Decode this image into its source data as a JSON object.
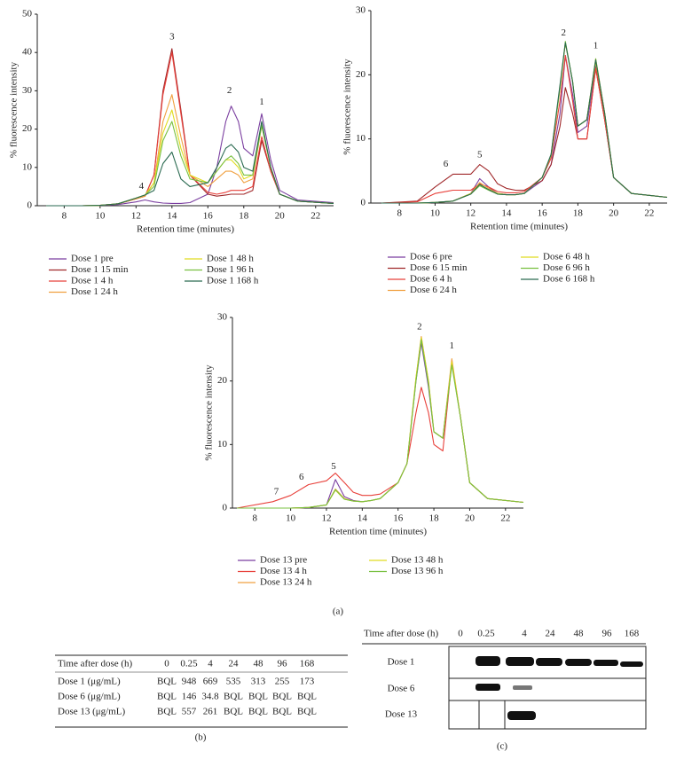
{
  "chart_data": [
    {
      "type": "line",
      "xlabel": "Retention time (minutes)",
      "ylabel": "% fluorescence intensity",
      "x": [
        7,
        9,
        10,
        11,
        12,
        12.5,
        13,
        13.5,
        14,
        14.5,
        15,
        16,
        16.5,
        17,
        17.3,
        17.7,
        18,
        18.5,
        19,
        19.5,
        20,
        21,
        23
      ],
      "xlim": [
        6.5,
        23
      ],
      "xticks": [
        8,
        10,
        12,
        14,
        16,
        18,
        20,
        22
      ],
      "ylim": [
        0,
        50
      ],
      "yticks": [
        0,
        10,
        20,
        30,
        40,
        50
      ],
      "series": [
        {
          "name": "Dose 1 pre",
          "color": "#7b3fa0",
          "values": [
            0,
            0,
            0.1,
            0.3,
            1,
            1.5,
            1,
            0.7,
            0.6,
            0.6,
            0.8,
            3,
            10,
            22,
            26,
            22,
            15,
            13,
            24,
            12,
            4,
            1.5,
            0.8
          ]
        },
        {
          "name": "Dose 1 15 min",
          "color": "#a0282a",
          "values": [
            0,
            0,
            0.1,
            0.5,
            1.8,
            2.5,
            8,
            30,
            41,
            25,
            8,
            3,
            2.5,
            2.8,
            3,
            3,
            3,
            4,
            17,
            9,
            3,
            1.2,
            0.6
          ]
        },
        {
          "name": "Dose 1 4 h",
          "color": "#e8403a",
          "values": [
            0,
            0,
            0.1,
            0.5,
            1.8,
            2.5,
            8,
            29,
            40,
            24,
            8,
            3.5,
            3,
            3.5,
            4,
            4,
            4,
            5,
            18,
            9,
            3,
            1.2,
            0.6
          ]
        },
        {
          "name": "Dose 1 24 h",
          "color": "#f0a040",
          "values": [
            0,
            0,
            0.1,
            0.5,
            1.8,
            2.5,
            6,
            22,
            29,
            18,
            8,
            5,
            7,
            9,
            9,
            8,
            6,
            7,
            21,
            10,
            3,
            1.2,
            0.6
          ]
        },
        {
          "name": "Dose 1 48 h",
          "color": "#e0dc20",
          "values": [
            0,
            0,
            0.1,
            0.5,
            2,
            2.8,
            6,
            19,
            25,
            15,
            8,
            6,
            9,
            12,
            12,
            10,
            7,
            8,
            21,
            10,
            3,
            1.2,
            0.6
          ]
        },
        {
          "name": "Dose 1 96 h",
          "color": "#78c040",
          "values": [
            0,
            0,
            0.1,
            0.5,
            2,
            2.8,
            5,
            17,
            22,
            13,
            7,
            6,
            9,
            12,
            13,
            11,
            8,
            8,
            21,
            10,
            3,
            1.2,
            0.6
          ]
        },
        {
          "name": "Dose 1 168 h",
          "color": "#2a6a50",
          "values": [
            0,
            0,
            0.1,
            0.5,
            2,
            2.8,
            4,
            11,
            14,
            7,
            5,
            6,
            10,
            15,
            16,
            14,
            10,
            9,
            22,
            10,
            3,
            1.2,
            0.6
          ]
        }
      ],
      "annotations": [
        {
          "text": "4",
          "x": 12.3,
          "y": 5
        },
        {
          "text": "3",
          "x": 14,
          "y": 44
        },
        {
          "text": "2",
          "x": 17.2,
          "y": 30
        },
        {
          "text": "1",
          "x": 19,
          "y": 27
        }
      ]
    },
    {
      "type": "line",
      "xlabel": "Retention time (minutes)",
      "ylabel": "% fluorescence intensity",
      "x": [
        7,
        9,
        10,
        11,
        12,
        12.5,
        13,
        13.5,
        14,
        14.5,
        15,
        16,
        16.5,
        17,
        17.3,
        17.7,
        18,
        18.5,
        19,
        19.5,
        20,
        21,
        23
      ],
      "xlim": [
        6.4,
        23
      ],
      "xticks": [
        8,
        10,
        12,
        14,
        16,
        18,
        20,
        22
      ],
      "ylim": [
        0,
        30
      ],
      "yticks": [
        0,
        10,
        20,
        30
      ],
      "series": [
        {
          "name": "Dose 6 pre",
          "color": "#7b3fa0",
          "values": [
            0,
            0,
            0.1,
            0.3,
            1.5,
            3.8,
            2.5,
            1.5,
            1.3,
            1.3,
            1.5,
            3.5,
            6,
            14,
            23,
            17,
            11,
            12,
            21.5,
            13,
            4,
            1.5,
            0.9
          ]
        },
        {
          "name": "Dose 6 15 min",
          "color": "#a0282a",
          "values": [
            0,
            0.3,
            2.5,
            4.5,
            4.5,
            6,
            5,
            3,
            2.3,
            2,
            2,
            3.5,
            6,
            12,
            18,
            14,
            10,
            10,
            21,
            13,
            4,
            1.5,
            0.9
          ]
        },
        {
          "name": "Dose 6 4 h",
          "color": "#e8403a",
          "values": [
            0,
            0.2,
            1.5,
            2,
            2,
            3,
            2.5,
            1.8,
            1.6,
            1.6,
            1.8,
            4,
            7,
            16,
            23,
            16,
            10,
            10,
            21,
            13,
            4,
            1.5,
            0.9
          ]
        },
        {
          "name": "Dose 6 24 h",
          "color": "#f0a040",
          "values": [
            0,
            0,
            0.1,
            0.3,
            1.5,
            3.2,
            2.3,
            1.5,
            1.3,
            1.3,
            1.5,
            4,
            7.5,
            18,
            25,
            19,
            12,
            13,
            22.5,
            14,
            4,
            1.5,
            0.9
          ]
        },
        {
          "name": "Dose 6 48 h",
          "color": "#e0dc20",
          "values": [
            0,
            0,
            0.1,
            0.3,
            1.5,
            2.8,
            2.1,
            1.5,
            1.3,
            1.3,
            1.5,
            4,
            7.5,
            18,
            25,
            19,
            12,
            13,
            22,
            14,
            4,
            1.5,
            0.9
          ]
        },
        {
          "name": "Dose 6 96 h",
          "color": "#78c040",
          "values": [
            0,
            0,
            0.1,
            0.3,
            1.4,
            2.7,
            2,
            1.4,
            1.3,
            1.3,
            1.5,
            4,
            7.5,
            18,
            25.2,
            19,
            12,
            13,
            22.5,
            14,
            4,
            1.5,
            0.9
          ]
        },
        {
          "name": "Dose 6 168 h",
          "color": "#2a6a50",
          "values": [
            0,
            0,
            0.1,
            0.3,
            1.4,
            2.9,
            2.1,
            1.4,
            1.3,
            1.3,
            1.5,
            4,
            7.6,
            18.5,
            25,
            19,
            12,
            13,
            22.3,
            14,
            4,
            1.5,
            0.9
          ]
        }
      ],
      "annotations": [
        {
          "text": "6",
          "x": 10.6,
          "y": 6
        },
        {
          "text": "5",
          "x": 12.5,
          "y": 7.5
        },
        {
          "text": "2",
          "x": 17.2,
          "y": 26.5
        },
        {
          "text": "1",
          "x": 19,
          "y": 24.5
        }
      ]
    },
    {
      "type": "line",
      "xlabel": "Retention time (minutes)",
      "ylabel": "% fluorescence intensity",
      "x": [
        7,
        9,
        10,
        11,
        12,
        12.5,
        13,
        13.5,
        14,
        14.5,
        15,
        16,
        16.5,
        17,
        17.3,
        17.7,
        18,
        18.5,
        19,
        19.5,
        20,
        21,
        23
      ],
      "xlim": [
        6.75,
        23
      ],
      "xticks": [
        8,
        10,
        12,
        14,
        16,
        18,
        20,
        22
      ],
      "ylim": [
        0,
        30
      ],
      "yticks": [
        0,
        10,
        20,
        30
      ],
      "series": [
        {
          "name": "Dose 13 pre",
          "color": "#7b3fa0",
          "values": [
            0,
            0,
            0,
            0.1,
            0.5,
            4.5,
            1.8,
            1.2,
            1,
            1.2,
            1.5,
            4,
            7,
            20,
            26,
            19,
            12,
            11,
            23,
            14,
            4,
            1.5,
            0.9
          ]
        },
        {
          "name": "Dose 13 4 h",
          "color": "#e8403a",
          "values": [
            0,
            1,
            2,
            3.7,
            4.3,
            5.5,
            4,
            2.5,
            2,
            2,
            2.2,
            4,
            7,
            15,
            19,
            15,
            10,
            9,
            23,
            14,
            4,
            1.5,
            0.9
          ]
        },
        {
          "name": "Dose 13 24 h",
          "color": "#f0a040",
          "values": [
            0,
            0,
            0,
            0.1,
            0.5,
            3,
            1.5,
            1.1,
            1,
            1.2,
            1.5,
            4,
            7,
            20.5,
            27,
            20,
            12,
            11,
            23.5,
            14,
            4,
            1.5,
            0.9
          ]
        },
        {
          "name": "Dose 13 48 h",
          "color": "#e0dc20",
          "values": [
            0,
            0,
            0,
            0.1,
            0.5,
            2.8,
            1.4,
            1.1,
            1,
            1.2,
            1.5,
            4,
            7,
            20.5,
            26.8,
            20,
            12,
            11,
            23,
            14,
            4,
            1.5,
            0.9
          ]
        },
        {
          "name": "Dose 13 96 h",
          "color": "#78c040",
          "values": [
            0,
            0,
            0,
            0.1,
            0.5,
            2.9,
            1.4,
            1.1,
            1,
            1.2,
            1.5,
            4,
            7,
            20,
            26.5,
            19.5,
            12,
            11,
            22.5,
            14,
            4,
            1.5,
            0.9
          ]
        }
      ],
      "annotations": [
        {
          "text": "7",
          "x": 9.2,
          "y": 2.5
        },
        {
          "text": "6",
          "x": 10.6,
          "y": 4.8
        },
        {
          "text": "5",
          "x": 12.4,
          "y": 6.5
        },
        {
          "text": "2",
          "x": 17.2,
          "y": 28.5
        },
        {
          "text": "1",
          "x": 19,
          "y": 25.5
        }
      ]
    }
  ],
  "panel_labels": [
    "(a)",
    "(b)",
    "(c)"
  ],
  "table": {
    "header": [
      "Time after dose (h)",
      "0",
      "0.25",
      "4",
      "24",
      "48",
      "96",
      "168"
    ],
    "rows": [
      [
        "Dose 1 (μg/mL)",
        "BQL",
        "948",
        "669",
        "535",
        "313",
        "255",
        "173"
      ],
      [
        "Dose 6 (μg/mL)",
        "BQL",
        "146",
        "34.8",
        "BQL",
        "BQL",
        "BQL",
        "BQL"
      ],
      [
        "Dose 13 (μg/mL)",
        "BQL",
        "557",
        "261",
        "BQL",
        "BQL",
        "BQL",
        "BQL"
      ]
    ]
  },
  "blot": {
    "header": "Time after dose (h)",
    "lanes": [
      "0",
      "0.25",
      "4",
      "24",
      "48",
      "96",
      "168"
    ],
    "rows": [
      "Dose 1",
      "Dose 6",
      "Dose 13"
    ]
  }
}
